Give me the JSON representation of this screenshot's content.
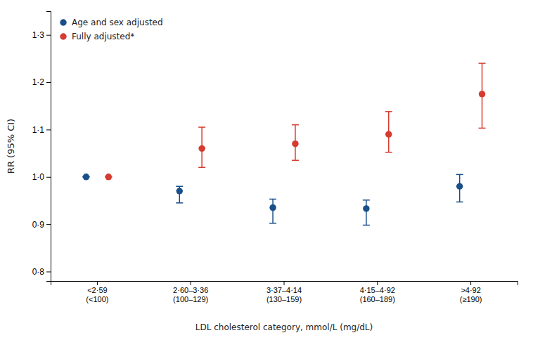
{
  "chart_data": {
    "type": "errorbar",
    "xlabel": "LDL cholesterol category, mmol/L (mg/dL)",
    "ylabel": "RR (95% CI)",
    "categories": [
      "<2·59\n(<100)",
      "2·60–3·36\n(100–129)",
      "3·37–4·14\n(130–159)",
      "4·15–4·92\n(160–189)",
      ">4·92\n(≥190)"
    ],
    "series": [
      {
        "name": "Age and sex adjusted",
        "color": "#1a4f8a",
        "marker": "circle",
        "values": [
          1.0,
          0.97,
          0.935,
          0.933,
          0.98
        ],
        "error_lo": [
          0.0,
          0.025,
          0.033,
          0.035,
          0.033
        ],
        "error_hi": [
          0.0,
          0.01,
          0.018,
          0.018,
          0.025
        ]
      },
      {
        "name": "Fully adjusted*",
        "color": "#d63b2f",
        "marker": "circle",
        "values": [
          1.0,
          1.06,
          1.07,
          1.09,
          1.175
        ],
        "error_lo": [
          0.0,
          0.04,
          0.035,
          0.038,
          0.072
        ],
        "error_hi": [
          0.0,
          0.045,
          0.04,
          0.048,
          0.065
        ]
      }
    ],
    "ylim": [
      0.78,
      1.35
    ],
    "yticks": [
      {
        "value": 0.8,
        "label": "0·8"
      },
      {
        "value": 0.9,
        "label": "0·9"
      },
      {
        "value": 1.0,
        "label": "1·0"
      },
      {
        "value": 1.1,
        "label": "1·1"
      },
      {
        "value": 1.2,
        "label": "1·2"
      },
      {
        "value": 1.3,
        "label": "1·3"
      }
    ],
    "grid": false,
    "legend": "upper left"
  }
}
